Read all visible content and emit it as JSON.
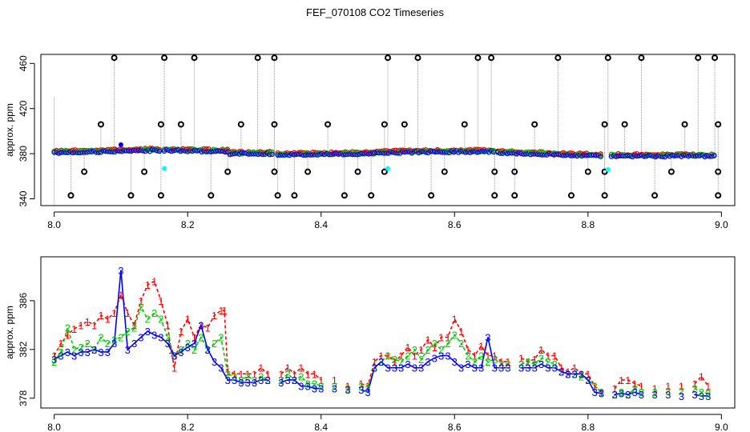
{
  "title": "FEF_070108  CO2 Timeseries",
  "colors": {
    "series1": "#ff0000",
    "series2": "#00cc00",
    "series3": "#0000ff",
    "outlier": "#000000",
    "flag": "#00ffff",
    "spike": "#999999"
  },
  "chart_data": [
    {
      "type": "scatter",
      "ylabel": "approx. ppm",
      "xlim": [
        7.98,
        9.02
      ],
      "ylim": [
        334,
        468
      ],
      "xticks": [
        "8.0",
        "8.2",
        "8.4",
        "8.6",
        "8.8",
        "9.0"
      ],
      "yticks": [
        "340",
        "380",
        "420",
        "460"
      ],
      "segments": [
        {
          "x": [
            8.0,
            8.16
          ],
          "y": [
            381,
            383
          ]
        },
        {
          "x": [
            8.165,
            8.26
          ],
          "y": [
            383,
            382
          ]
        },
        {
          "x": [
            8.26,
            8.33
          ],
          "y": [
            380,
            380
          ]
        },
        {
          "x": [
            8.335,
            8.48
          ],
          "y": [
            379,
            380
          ]
        },
        {
          "x": [
            8.48,
            8.66
          ],
          "y": [
            381,
            382
          ]
        },
        {
          "x": [
            8.665,
            8.82
          ],
          "y": [
            381,
            378
          ]
        },
        {
          "x": [
            8.835,
            8.99
          ],
          "y": [
            378,
            378
          ]
        }
      ],
      "outliers_high": [
        8.09,
        8.165,
        8.21,
        8.305,
        8.33,
        8.5,
        8.545,
        8.635,
        8.655,
        8.755,
        8.83,
        8.88,
        8.965,
        8.99
      ],
      "outliers_mid": [
        8.07,
        8.16,
        8.19,
        8.28,
        8.33,
        8.41,
        8.495,
        8.525,
        8.615,
        8.72,
        8.825,
        8.855,
        8.945,
        8.995
      ],
      "outliers_low1": [
        8.045,
        8.135,
        8.26,
        8.33,
        8.38,
        8.455,
        8.495,
        8.585,
        8.66,
        8.69,
        8.8,
        8.825,
        8.925,
        8.995
      ],
      "outliers_low2": [
        8.025,
        8.115,
        8.16,
        8.235,
        8.335,
        8.36,
        8.435,
        8.475,
        8.565,
        8.66,
        8.69,
        8.775,
        8.825,
        8.9,
        8.995
      ],
      "flags": [
        {
          "x": 8.1,
          "y": 388
        },
        {
          "x": 8.165,
          "y": 367
        },
        {
          "x": 8.5,
          "y": 367
        },
        {
          "x": 8.83,
          "y": 366
        }
      ]
    },
    {
      "type": "line",
      "ylabel": "approx. ppm",
      "xlim": [
        7.98,
        9.02
      ],
      "ylim": [
        377.2,
        389.6
      ],
      "xticks": [
        "8.0",
        "8.2",
        "8.4",
        "8.6",
        "8.8",
        "9.0"
      ],
      "yticks": [
        "378",
        "382",
        "386"
      ],
      "marker_labels": [
        "1",
        "2",
        "3"
      ],
      "series": [
        {
          "name": "1",
          "x": [
            8.0,
            8.01,
            8.02,
            8.03,
            8.04,
            8.05,
            8.06,
            8.07,
            8.08,
            8.09,
            8.1,
            8.11,
            8.12,
            8.13,
            8.14,
            8.15,
            8.16,
            8.17,
            8.175,
            8.18,
            8.19,
            8.2,
            8.21,
            8.22,
            8.23,
            8.24,
            8.25,
            8.255,
            8.26,
            8.27,
            8.28,
            8.29,
            8.3,
            8.31,
            8.32,
            8.34,
            8.35,
            8.36,
            8.37,
            8.38,
            8.39,
            8.4,
            8.42,
            8.44,
            8.46,
            8.47,
            8.48,
            8.49,
            8.5,
            8.51,
            8.52,
            8.53,
            8.54,
            8.55,
            8.56,
            8.57,
            8.58,
            8.59,
            8.6,
            8.61,
            8.62,
            8.63,
            8.64,
            8.65,
            8.66,
            8.67,
            8.68,
            8.7,
            8.71,
            8.72,
            8.73,
            8.74,
            8.75,
            8.76,
            8.77,
            8.78,
            8.79,
            8.8,
            8.81,
            8.82,
            8.84,
            8.85,
            8.86,
            8.87,
            8.88,
            8.9,
            8.92,
            8.94,
            8.96,
            8.97,
            8.98
          ],
          "y": [
            381.5,
            382.5,
            383.2,
            383.7,
            384.0,
            384.3,
            384.0,
            384.8,
            384.5,
            385.0,
            386.5,
            385.0,
            384.0,
            386.0,
            387.3,
            387.6,
            386.0,
            384.0,
            382.0,
            380.5,
            383.5,
            384.5,
            383.0,
            384.0,
            383.8,
            384.8,
            385.2,
            385.2,
            380.2,
            380.0,
            380.0,
            380.0,
            380.0,
            380.5,
            380.0,
            380.0,
            380.5,
            380.0,
            380.5,
            380.0,
            380.0,
            379.5,
            379.5,
            379.0,
            379.2,
            379.0,
            381.0,
            381.5,
            381.5,
            381.0,
            381.5,
            382.2,
            381.5,
            382.0,
            382.8,
            382.2,
            383.0,
            383.0,
            384.5,
            383.5,
            382.0,
            381.5,
            382.3,
            381.5,
            381.5,
            381.0,
            381.0,
            381.3,
            381.0,
            381.2,
            382.0,
            381.5,
            381.5,
            380.5,
            380.2,
            380.5,
            380.0,
            380.0,
            379.0,
            378.5,
            378.8,
            379.5,
            379.5,
            379.2,
            379.0,
            378.8,
            379.0,
            379.0,
            379.2,
            379.8,
            379.0
          ]
        },
        {
          "name": "2",
          "x": [
            8.0,
            8.01,
            8.02,
            8.03,
            8.04,
            8.05,
            8.06,
            8.07,
            8.08,
            8.09,
            8.1,
            8.11,
            8.12,
            8.13,
            8.14,
            8.15,
            8.16,
            8.17,
            8.18,
            8.19,
            8.2,
            8.21,
            8.22,
            8.23,
            8.24,
            8.25,
            8.26,
            8.27,
            8.28,
            8.29,
            8.3,
            8.31,
            8.32,
            8.34,
            8.35,
            8.36,
            8.37,
            8.38,
            8.39,
            8.4,
            8.42,
            8.44,
            8.46,
            8.47,
            8.48,
            8.49,
            8.5,
            8.51,
            8.52,
            8.53,
            8.54,
            8.55,
            8.56,
            8.57,
            8.58,
            8.59,
            8.6,
            8.61,
            8.62,
            8.63,
            8.64,
            8.65,
            8.66,
            8.67,
            8.68,
            8.7,
            8.71,
            8.72,
            8.73,
            8.74,
            8.75,
            8.76,
            8.77,
            8.78,
            8.79,
            8.8,
            8.81,
            8.82,
            8.84,
            8.85,
            8.86,
            8.87,
            8.88,
            8.9,
            8.92,
            8.94,
            8.96,
            8.97,
            8.98
          ],
          "y": [
            381.0,
            381.8,
            383.8,
            382.0,
            382.2,
            382.5,
            382.0,
            383.0,
            382.5,
            382.8,
            383.0,
            383.5,
            383.8,
            385.5,
            384.5,
            385.0,
            384.5,
            383.0,
            381.5,
            382.0,
            382.5,
            382.0,
            383.0,
            382.0,
            382.5,
            383.0,
            380.0,
            379.8,
            379.5,
            379.8,
            379.5,
            379.8,
            379.5,
            379.5,
            380.0,
            379.5,
            379.8,
            379.2,
            379.2,
            379.0,
            379.0,
            378.8,
            379.0,
            378.8,
            380.5,
            381.0,
            381.5,
            381.2,
            381.0,
            381.5,
            382.0,
            381.2,
            382.0,
            382.5,
            382.0,
            382.5,
            383.2,
            382.5,
            381.5,
            381.0,
            381.5,
            381.0,
            381.2,
            380.8,
            380.8,
            380.8,
            381.0,
            380.8,
            381.3,
            381.0,
            380.8,
            380.2,
            380.0,
            380.0,
            379.8,
            379.5,
            379.0,
            378.5,
            378.3,
            378.5,
            378.3,
            378.8,
            378.5,
            378.5,
            378.6,
            378.6,
            378.8,
            378.5,
            378.4
          ]
        },
        {
          "name": "3",
          "x": [
            8.0,
            8.01,
            8.02,
            8.03,
            8.04,
            8.05,
            8.06,
            8.07,
            8.08,
            8.09,
            8.1,
            8.11,
            8.12,
            8.13,
            8.14,
            8.15,
            8.16,
            8.17,
            8.18,
            8.19,
            8.2,
            8.21,
            8.22,
            8.23,
            8.24,
            8.25,
            8.26,
            8.27,
            8.28,
            8.29,
            8.3,
            8.31,
            8.32,
            8.34,
            8.35,
            8.36,
            8.37,
            8.38,
            8.39,
            8.4,
            8.42,
            8.44,
            8.46,
            8.47,
            8.48,
            8.49,
            8.5,
            8.51,
            8.52,
            8.53,
            8.54,
            8.55,
            8.56,
            8.57,
            8.58,
            8.59,
            8.6,
            8.61,
            8.62,
            8.63,
            8.64,
            8.65,
            8.66,
            8.67,
            8.68,
            8.7,
            8.71,
            8.72,
            8.73,
            8.74,
            8.75,
            8.76,
            8.77,
            8.78,
            8.79,
            8.8,
            8.81,
            8.82,
            8.84,
            8.85,
            8.86,
            8.87,
            8.88,
            8.9,
            8.92,
            8.94,
            8.96,
            8.97,
            8.98
          ],
          "y": [
            381.2,
            381.5,
            381.8,
            381.5,
            381.8,
            381.8,
            382.0,
            381.8,
            381.8,
            382.5,
            388.5,
            382.0,
            382.5,
            383.0,
            383.5,
            383.2,
            383.0,
            382.5,
            381.5,
            381.8,
            382.2,
            382.5,
            384.0,
            382.0,
            381.0,
            380.5,
            379.5,
            379.5,
            379.3,
            379.3,
            379.3,
            379.5,
            379.5,
            379.3,
            379.5,
            379.5,
            379.0,
            379.0,
            378.8,
            378.8,
            378.8,
            378.7,
            378.7,
            378.5,
            380.5,
            381.0,
            380.5,
            380.5,
            380.5,
            380.8,
            380.5,
            380.5,
            381.0,
            381.3,
            381.5,
            381.5,
            381.0,
            380.5,
            380.8,
            380.5,
            380.5,
            383.0,
            380.5,
            380.5,
            380.5,
            380.5,
            380.5,
            380.5,
            380.8,
            380.5,
            380.5,
            380.2,
            380.0,
            380.0,
            380.0,
            379.5,
            378.5,
            378.4,
            378.3,
            378.4,
            378.3,
            378.5,
            378.3,
            378.3,
            378.3,
            378.2,
            378.3,
            378.2,
            378.2
          ]
        }
      ]
    }
  ]
}
